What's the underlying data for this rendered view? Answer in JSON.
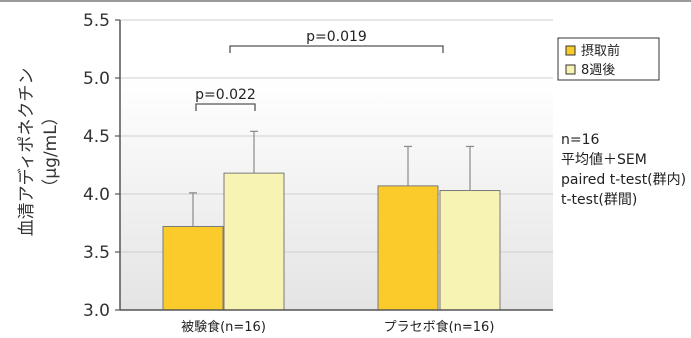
{
  "chart_data": {
    "type": "bar",
    "ylabel_main": "血清アディポネクチン",
    "ylabel_unit": "（μg/mL）",
    "ylim": [
      3.0,
      5.5
    ],
    "yticks": [
      "3.0",
      "3.5",
      "4.0",
      "4.5",
      "5.0",
      "5.5"
    ],
    "yticks_values": [
      3.0,
      3.5,
      4.0,
      4.5,
      5.0,
      5.5
    ],
    "categories": [
      "被験食(n=16)",
      "プラセボ食(n=16)"
    ],
    "series": [
      {
        "name": "摂取前",
        "values": [
          3.72,
          4.07
        ],
        "sem": [
          0.29,
          0.34
        ],
        "color": "#FBCB2C"
      },
      {
        "name": "8週後",
        "values": [
          4.18,
          4.03
        ],
        "sem": [
          0.36,
          0.38
        ],
        "color": "#F7F3B3"
      }
    ],
    "grid": true,
    "legend_position": "top-right",
    "annotations": [
      {
        "text": "p=0.022"
      },
      {
        "text": "p=0.019"
      }
    ],
    "notes": [
      "n=16",
      "平均値＋SEM",
      "paired t-test(群内)",
      "t-test(群間)"
    ]
  }
}
